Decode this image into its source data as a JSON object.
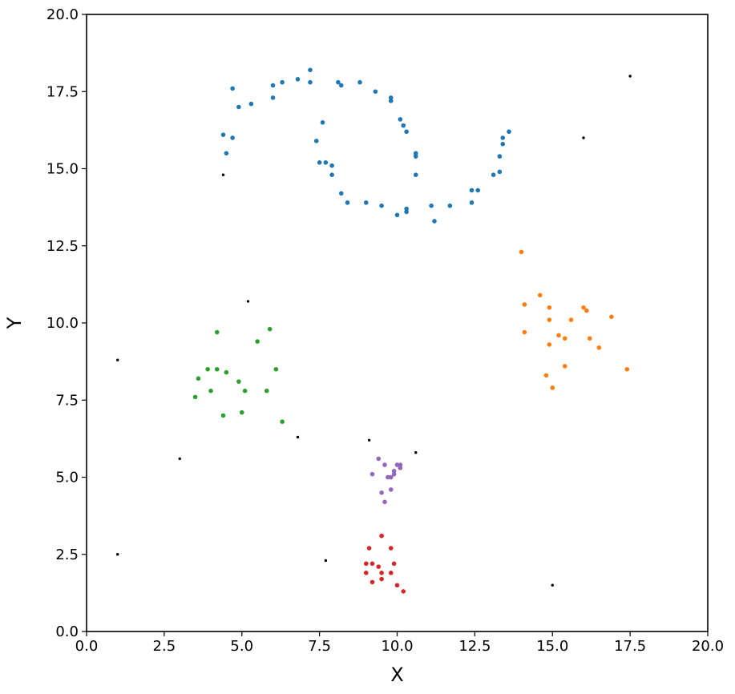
{
  "chart_data": {
    "type": "scatter",
    "title": "",
    "xlabel": "X",
    "ylabel": "Y",
    "xlim": [
      0,
      20
    ],
    "ylim": [
      0,
      20
    ],
    "xticks": [
      "0.0",
      "2.5",
      "5.0",
      "7.5",
      "10.0",
      "12.5",
      "15.0",
      "17.5",
      "20.0"
    ],
    "yticks": [
      "0.0",
      "2.5",
      "5.0",
      "7.5",
      "10.0",
      "12.5",
      "15.0",
      "17.5",
      "20.0"
    ],
    "grid": false,
    "legend": false,
    "series": [
      {
        "color": "#1f77b4",
        "points": [
          [
            4.4,
            16.1
          ],
          [
            4.5,
            15.5
          ],
          [
            4.7,
            16.0
          ],
          [
            4.7,
            17.6
          ],
          [
            4.9,
            17.0
          ],
          [
            5.3,
            17.1
          ],
          [
            6.0,
            17.7
          ],
          [
            6.0,
            17.3
          ],
          [
            6.3,
            17.8
          ],
          [
            6.8,
            17.9
          ],
          [
            7.2,
            18.2
          ],
          [
            7.2,
            17.8
          ],
          [
            7.4,
            15.9
          ],
          [
            7.5,
            15.2
          ],
          [
            7.6,
            16.5
          ],
          [
            7.7,
            15.2
          ],
          [
            7.9,
            15.1
          ],
          [
            7.9,
            14.8
          ],
          [
            8.1,
            17.8
          ],
          [
            8.2,
            17.7
          ],
          [
            8.2,
            14.2
          ],
          [
            8.4,
            13.9
          ],
          [
            8.8,
            17.8
          ],
          [
            9.0,
            13.9
          ],
          [
            9.3,
            17.5
          ],
          [
            9.5,
            13.8
          ],
          [
            9.8,
            17.2
          ],
          [
            9.8,
            17.3
          ],
          [
            10.0,
            13.5
          ],
          [
            10.1,
            16.6
          ],
          [
            10.2,
            16.4
          ],
          [
            10.3,
            16.2
          ],
          [
            10.3,
            13.7
          ],
          [
            10.3,
            13.6
          ],
          [
            10.6,
            15.5
          ],
          [
            10.6,
            15.4
          ],
          [
            10.6,
            14.8
          ],
          [
            11.1,
            13.8
          ],
          [
            11.2,
            13.3
          ],
          [
            11.7,
            13.8
          ],
          [
            12.4,
            13.9
          ],
          [
            12.4,
            14.3
          ],
          [
            12.6,
            14.3
          ],
          [
            13.1,
            14.8
          ],
          [
            13.3,
            14.9
          ],
          [
            13.3,
            15.4
          ],
          [
            13.4,
            15.8
          ],
          [
            13.4,
            16.0
          ],
          [
            13.6,
            16.2
          ]
        ]
      },
      {
        "color": "#ff7f0e",
        "points": [
          [
            14.0,
            12.3
          ],
          [
            14.1,
            10.6
          ],
          [
            14.1,
            9.7
          ],
          [
            14.6,
            10.9
          ],
          [
            14.8,
            8.3
          ],
          [
            14.9,
            10.5
          ],
          [
            14.9,
            10.1
          ],
          [
            14.9,
            9.3
          ],
          [
            15.0,
            7.9
          ],
          [
            15.2,
            9.6
          ],
          [
            15.4,
            9.5
          ],
          [
            15.4,
            8.6
          ],
          [
            15.6,
            10.1
          ],
          [
            16.0,
            10.5
          ],
          [
            16.1,
            10.4
          ],
          [
            16.2,
            9.5
          ],
          [
            16.5,
            9.2
          ],
          [
            16.9,
            10.2
          ],
          [
            17.4,
            8.5
          ]
        ]
      },
      {
        "color": "#2ca02c",
        "points": [
          [
            3.5,
            7.6
          ],
          [
            3.6,
            8.2
          ],
          [
            3.9,
            8.5
          ],
          [
            4.0,
            7.8
          ],
          [
            4.2,
            9.7
          ],
          [
            4.2,
            8.5
          ],
          [
            4.4,
            7.0
          ],
          [
            4.5,
            8.4
          ],
          [
            4.9,
            8.1
          ],
          [
            5.0,
            7.1
          ],
          [
            5.1,
            7.8
          ],
          [
            5.5,
            9.4
          ],
          [
            5.8,
            7.8
          ],
          [
            5.9,
            9.8
          ],
          [
            6.1,
            8.5
          ],
          [
            6.3,
            6.8
          ]
        ]
      },
      {
        "color": "#d62728",
        "points": [
          [
            9.0,
            2.2
          ],
          [
            9.0,
            1.9
          ],
          [
            9.1,
            2.7
          ],
          [
            9.2,
            1.6
          ],
          [
            9.2,
            2.2
          ],
          [
            9.4,
            2.1
          ],
          [
            9.5,
            1.7
          ],
          [
            9.5,
            1.9
          ],
          [
            9.5,
            3.1
          ],
          [
            9.8,
            2.7
          ],
          [
            9.8,
            1.9
          ],
          [
            9.9,
            2.2
          ],
          [
            10.0,
            1.5
          ],
          [
            10.2,
            1.3
          ]
        ]
      },
      {
        "color": "#9467bd",
        "points": [
          [
            9.2,
            5.1
          ],
          [
            9.4,
            5.6
          ],
          [
            9.5,
            4.5
          ],
          [
            9.6,
            5.4
          ],
          [
            9.6,
            4.2
          ],
          [
            9.7,
            5.0
          ],
          [
            9.8,
            5.0
          ],
          [
            9.8,
            4.6
          ],
          [
            9.9,
            5.2
          ],
          [
            9.9,
            5.1
          ],
          [
            10.0,
            5.4
          ],
          [
            10.1,
            5.3
          ],
          [
            10.1,
            5.4
          ]
        ]
      },
      {
        "color": "#000000",
        "points": [
          [
            1.0,
            8.8
          ],
          [
            1.0,
            2.5
          ],
          [
            3.0,
            5.6
          ],
          [
            4.4,
            14.8
          ],
          [
            5.2,
            10.7
          ],
          [
            6.8,
            6.3
          ],
          [
            7.7,
            2.3
          ],
          [
            9.1,
            6.2
          ],
          [
            10.6,
            5.8
          ],
          [
            15.0,
            1.5
          ],
          [
            16.0,
            16.0
          ],
          [
            17.5,
            18.0
          ]
        ]
      }
    ]
  }
}
